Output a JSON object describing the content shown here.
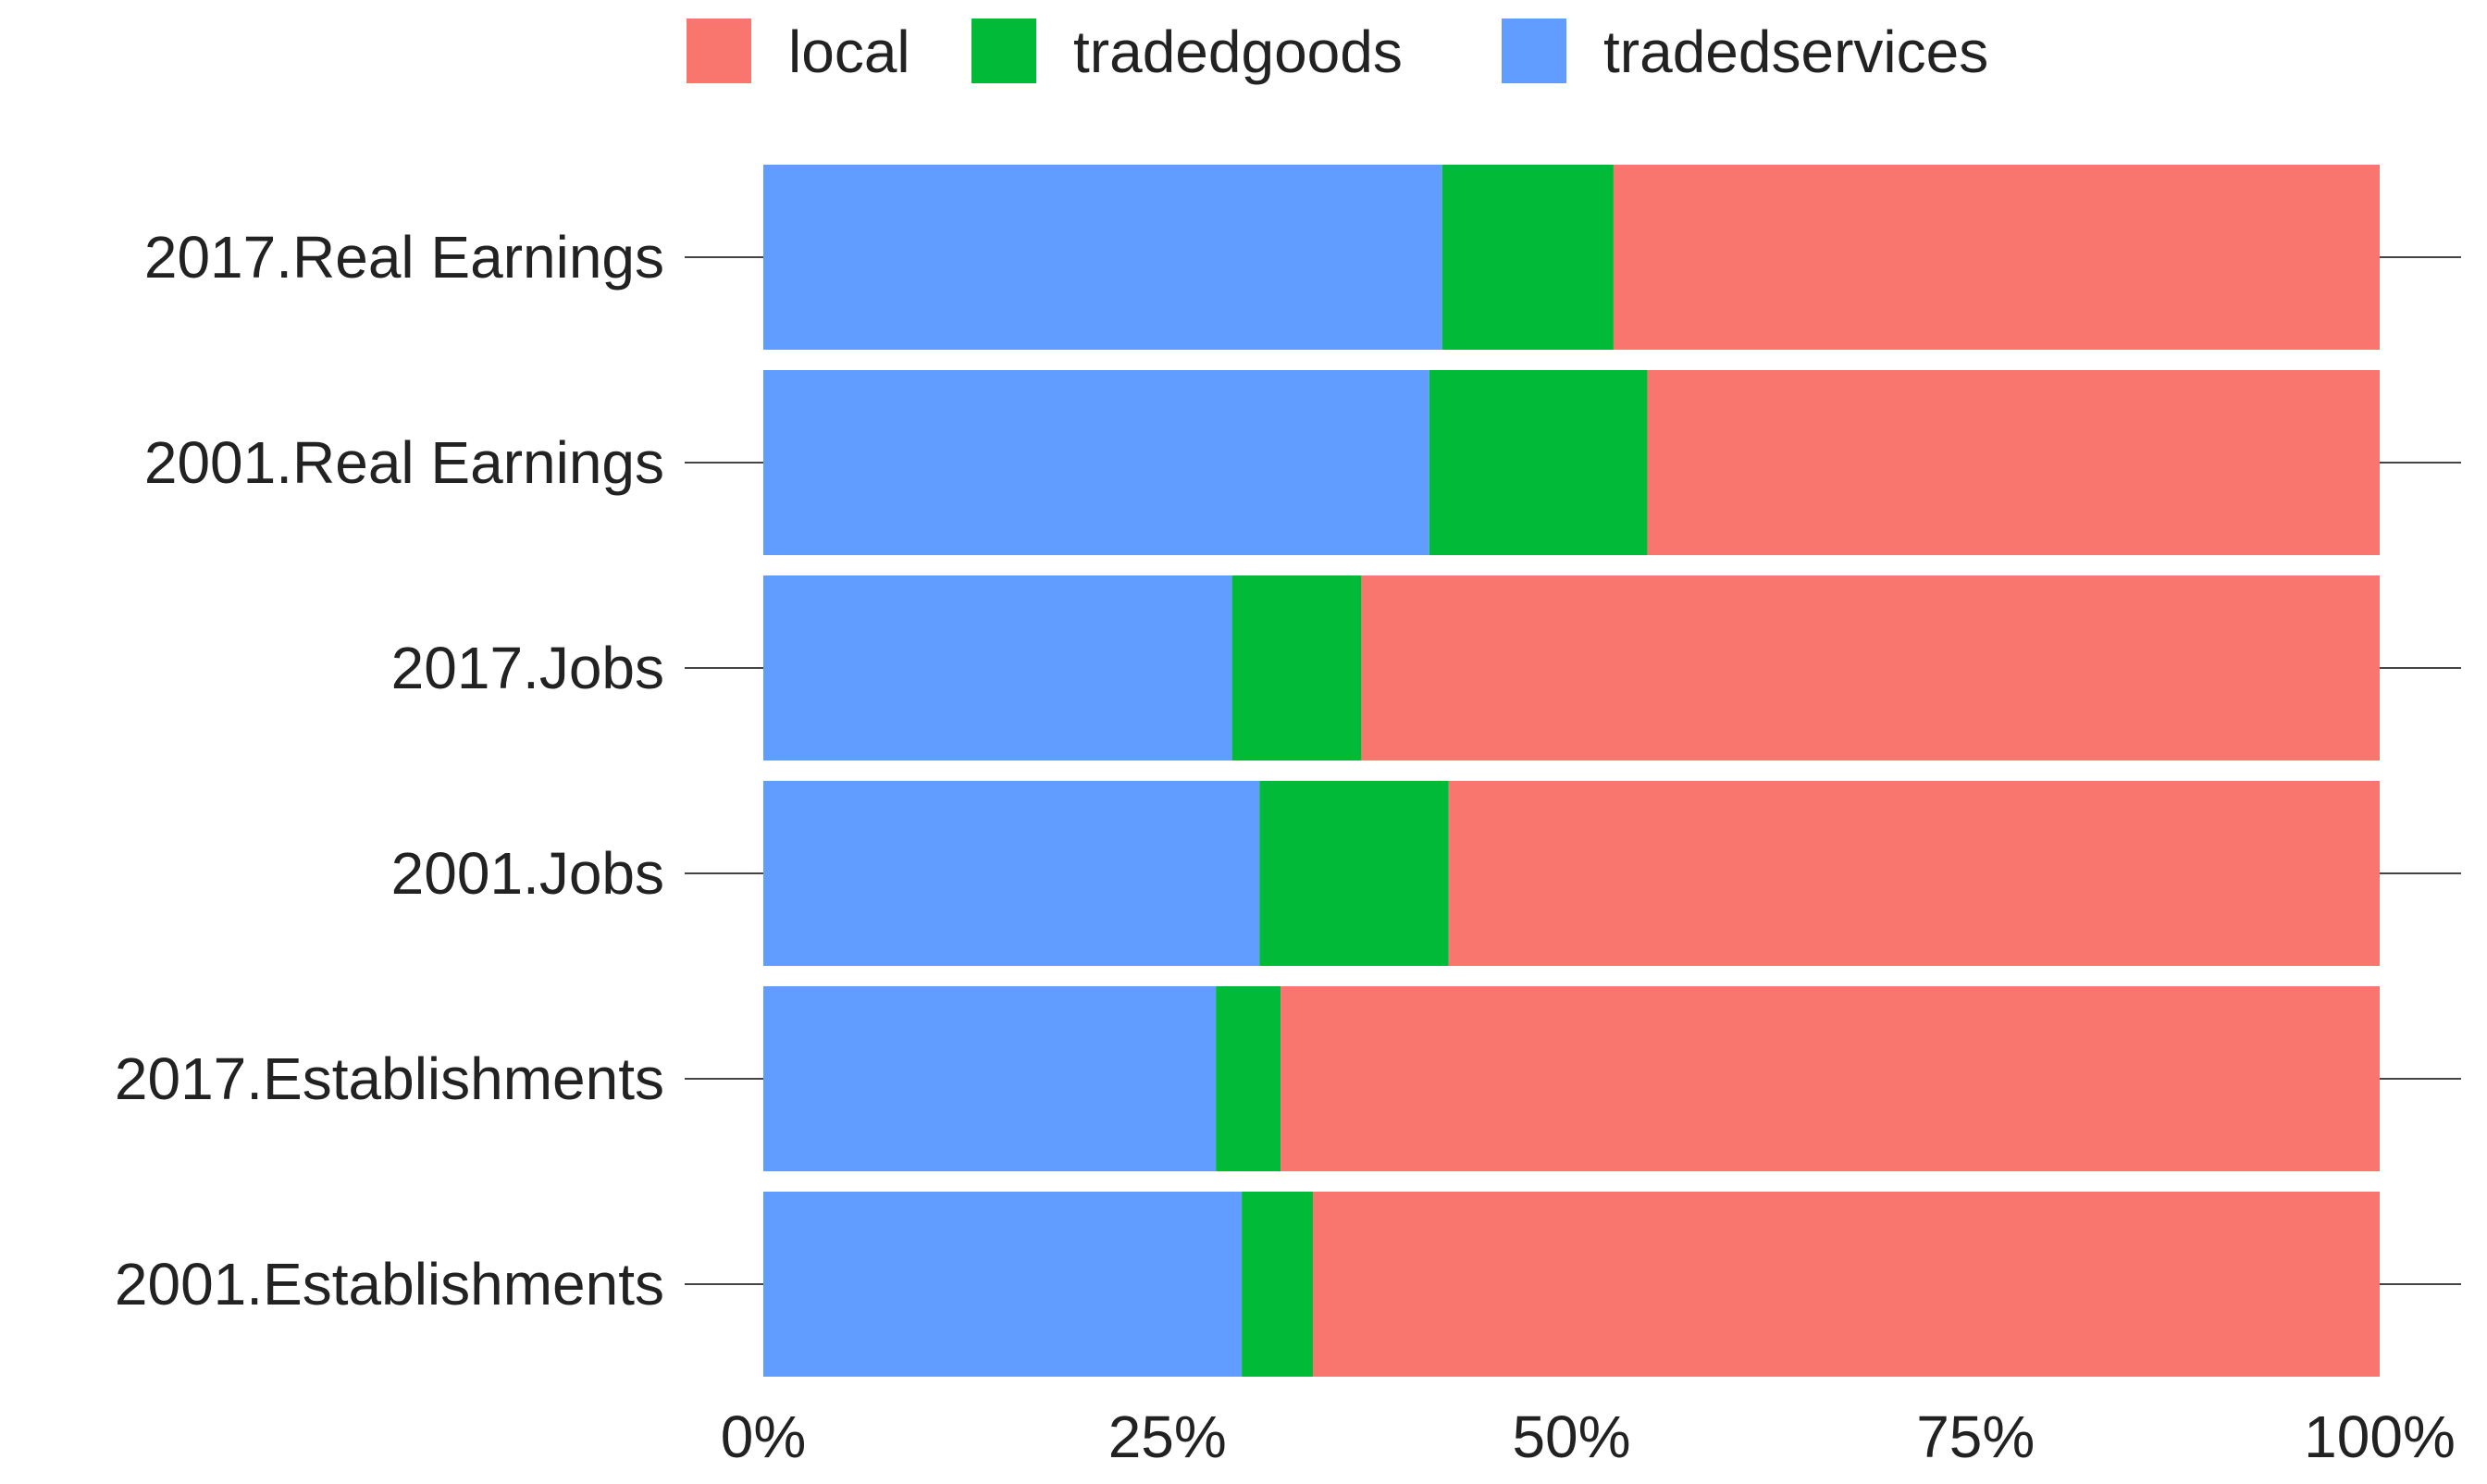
{
  "chart_data": {
    "type": "bar",
    "orientation": "horizontal",
    "stacked": true,
    "normalized": true,
    "categories": [
      "2017.Real Earnings",
      "2001.Real Earnings",
      "2017.Jobs",
      "2001.Jobs",
      "2017.Establishments",
      "2001.Establishments"
    ],
    "series": [
      {
        "name": "tradedservices",
        "color": "#619CFF",
        "values": [
          42.0,
          41.2,
          29.0,
          30.7,
          28.0,
          29.6
        ]
      },
      {
        "name": "tradedgoods",
        "color": "#00BA38",
        "values": [
          10.6,
          13.5,
          8.0,
          11.7,
          4.0,
          4.4
        ]
      },
      {
        "name": "local",
        "color": "#F8766D",
        "values": [
          47.4,
          45.3,
          63.0,
          57.6,
          68.0,
          66.0
        ]
      }
    ],
    "legend": {
      "position": "top",
      "items": [
        "local",
        "tradedgoods",
        "tradedservices"
      ]
    },
    "xlim": [
      0,
      100
    ],
    "x_ticks": [
      0,
      25,
      50,
      75,
      100
    ],
    "x_tick_labels": [
      "0%",
      "25%",
      "50%",
      "75%",
      "100%"
    ],
    "title": "",
    "xlabel": "",
    "ylabel": "",
    "grid": false
  }
}
